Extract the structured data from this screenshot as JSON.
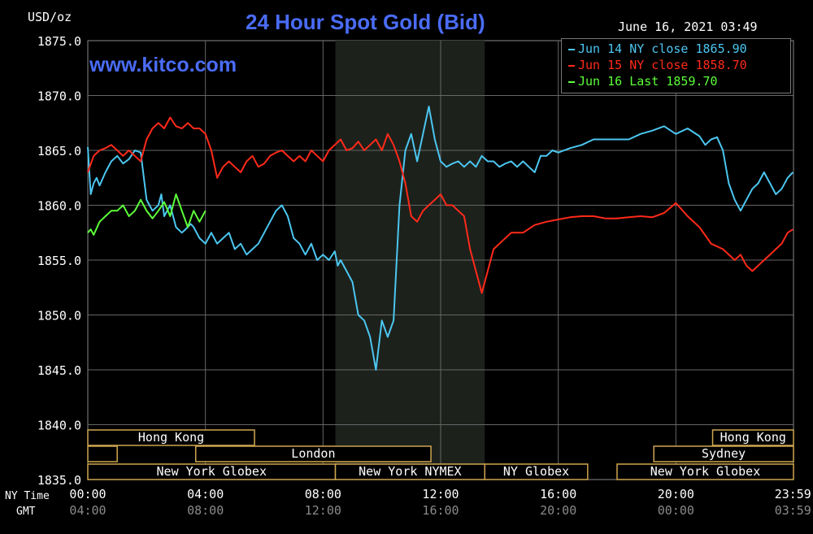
{
  "header": {
    "unit": "USD/oz",
    "title": "24 Hour Spot Gold (Bid)",
    "datetime": "June 16, 2021 03:49",
    "website": "www.kitco.com"
  },
  "colors": {
    "background": "#000000",
    "grid": "#666666",
    "title": "#4a6cf7",
    "jun14": "#4cc6f0",
    "jun15": "#ff2a1a",
    "jun16": "#5dff3a",
    "session_border": "#d0a650",
    "highlight": "#1c211c"
  },
  "legend": [
    {
      "label": "Jun 14 NY close 1865.90",
      "color": "#4cc6f0"
    },
    {
      "label": "Jun 15 NY close 1858.70",
      "color": "#ff2a1a"
    },
    {
      "label": "Jun 16 Last 1859.70",
      "color": "#5dff3a"
    }
  ],
  "row_labels": {
    "ny": "NY Time",
    "gmt": "GMT"
  },
  "sessions": [
    {
      "label": "Hong Kong",
      "start": 0,
      "end": 5.67,
      "row": 0
    },
    {
      "label": "",
      "start": 0,
      "end": 1.0,
      "row": 1
    },
    {
      "label": "London",
      "start": 3.67,
      "end": 11.67,
      "row": 1
    },
    {
      "label": "New York Globex",
      "start": 0,
      "end": 8.42,
      "row": 2
    },
    {
      "label": "New York NYMEX",
      "start": 8.42,
      "end": 13.5,
      "row": 2
    },
    {
      "label": "NY Globex",
      "start": 13.5,
      "end": 17.0,
      "row": 2
    },
    {
      "label": "Hong Kong",
      "start": 21.25,
      "end": 24,
      "row": 0
    },
    {
      "label": "Sydney",
      "start": 19.25,
      "end": 24,
      "row": 1
    },
    {
      "label": "New York Globex",
      "start": 18.0,
      "end": 24,
      "row": 2
    }
  ],
  "chart_data": {
    "type": "line",
    "title": "24 Hour Spot Gold (Bid)",
    "ylabel": "USD/oz",
    "xlim": [
      0,
      24
    ],
    "ylim": [
      1835,
      1875
    ],
    "grid": true,
    "legend_position": "top-right",
    "highlight_band": [
      8.42,
      13.5
    ],
    "y_ticks": [
      "1875.0",
      "1870.0",
      "1865.0",
      "1860.0",
      "1855.0",
      "1850.0",
      "1845.0",
      "1840.0",
      "1835.0"
    ],
    "x_ticks": [
      {
        "x": 0,
        "ny": "00:00",
        "gmt": "04:00"
      },
      {
        "x": 4,
        "ny": "04:00",
        "gmt": "08:00"
      },
      {
        "x": 8,
        "ny": "08:00",
        "gmt": "12:00"
      },
      {
        "x": 12,
        "ny": "12:00",
        "gmt": "16:00"
      },
      {
        "x": 16,
        "ny": "16:00",
        "gmt": "20:00"
      },
      {
        "x": 20,
        "ny": "20:00",
        "gmt": "00:00"
      },
      {
        "x": 23.98,
        "ny": "23:59",
        "gmt": "03:59"
      }
    ],
    "series": [
      {
        "name": "Jun 14 NY close 1865.90",
        "color": "#4cc6f0",
        "x": [
          0,
          0.1,
          0.2,
          0.3,
          0.4,
          0.6,
          0.8,
          1.0,
          1.2,
          1.4,
          1.6,
          1.8,
          2.0,
          2.2,
          2.4,
          2.5,
          2.6,
          2.8,
          3.0,
          3.2,
          3.4,
          3.5,
          3.6,
          3.8,
          4.0,
          4.2,
          4.4,
          4.6,
          4.8,
          5.0,
          5.2,
          5.4,
          5.6,
          5.8,
          6.0,
          6.2,
          6.4,
          6.6,
          6.8,
          7.0,
          7.2,
          7.4,
          7.6,
          7.8,
          8.0,
          8.2,
          8.4,
          8.5,
          8.6,
          8.8,
          9.0,
          9.2,
          9.4,
          9.6,
          9.8,
          10.0,
          10.2,
          10.4,
          10.6,
          10.8,
          11.0,
          11.2,
          11.4,
          11.6,
          11.8,
          12.0,
          12.2,
          12.4,
          12.6,
          12.8,
          13.0,
          13.2,
          13.4,
          13.6,
          13.8,
          14.0,
          14.2,
          14.4,
          14.6,
          14.8,
          15.0,
          15.2,
          15.4,
          15.6,
          15.8,
          16.0,
          16.4,
          16.8,
          17.2,
          17.6,
          18.0,
          18.4,
          18.8,
          19.2,
          19.6,
          20.0,
          20.4,
          20.8,
          21.0,
          21.2,
          21.4,
          21.6,
          21.8,
          22.0,
          22.2,
          22.4,
          22.6,
          22.8,
          23.0,
          23.2,
          23.4,
          23.6,
          23.8,
          23.98
        ],
        "y": [
          1865.3,
          1861,
          1862,
          1862.5,
          1861.8,
          1863,
          1864,
          1864.5,
          1863.8,
          1864.2,
          1865,
          1864.8,
          1860.5,
          1859.5,
          1860,
          1861,
          1859,
          1860,
          1858,
          1857.5,
          1858,
          1858.3,
          1858,
          1857,
          1856.5,
          1857.5,
          1856.5,
          1857,
          1857.5,
          1856,
          1856.5,
          1855.5,
          1856,
          1856.5,
          1857.5,
          1858.5,
          1859.5,
          1860,
          1859,
          1857,
          1856.5,
          1855.5,
          1856.5,
          1855,
          1855.5,
          1855,
          1855.8,
          1854.5,
          1855,
          1854,
          1853,
          1850,
          1849.5,
          1848,
          1845,
          1849.5,
          1848,
          1849.5,
          1860,
          1865,
          1866.5,
          1864,
          1866.5,
          1869,
          1866,
          1864,
          1863.5,
          1863.8,
          1864,
          1863.5,
          1864,
          1863.5,
          1864.5,
          1864,
          1864,
          1863.5,
          1863.8,
          1864,
          1863.5,
          1864,
          1863.5,
          1863,
          1864.5,
          1864.5,
          1865,
          1864.8,
          1865.2,
          1865.5,
          1866,
          1866,
          1866,
          1866,
          1866.5,
          1866.8,
          1867.2,
          1866.5,
          1867,
          1866.3,
          1865.5,
          1866,
          1866.2,
          1865,
          1862,
          1860.5,
          1859.5,
          1860.5,
          1861.5,
          1862,
          1863,
          1862,
          1861,
          1861.5,
          1862.5,
          1863
        ]
      },
      {
        "name": "Jun 15 NY close 1858.70",
        "color": "#ff2a1a",
        "x": [
          0,
          0.2,
          0.4,
          0.6,
          0.8,
          1.0,
          1.2,
          1.4,
          1.6,
          1.8,
          2.0,
          2.2,
          2.4,
          2.6,
          2.8,
          3.0,
          3.2,
          3.4,
          3.6,
          3.8,
          4.0,
          4.2,
          4.4,
          4.6,
          4.8,
          5.0,
          5.2,
          5.4,
          5.6,
          5.8,
          6.0,
          6.2,
          6.4,
          6.6,
          6.8,
          7.0,
          7.2,
          7.4,
          7.6,
          7.8,
          8.0,
          8.2,
          8.4,
          8.6,
          8.8,
          9.0,
          9.2,
          9.4,
          9.6,
          9.8,
          10.0,
          10.2,
          10.4,
          10.6,
          10.8,
          11.0,
          11.2,
          11.4,
          11.6,
          11.8,
          12.0,
          12.2,
          12.4,
          12.6,
          12.8,
          13.0,
          13.2,
          13.4,
          13.6,
          13.8,
          14.0,
          14.4,
          14.8,
          15.2,
          15.6,
          16.0,
          16.4,
          16.8,
          17.2,
          17.6,
          18.0,
          18.4,
          18.8,
          19.2,
          19.6,
          20.0,
          20.4,
          20.8,
          21.2,
          21.6,
          22.0,
          22.2,
          22.4,
          22.6,
          22.8,
          23.0,
          23.2,
          23.4,
          23.6,
          23.8,
          23.98
        ],
        "y": [
          1863,
          1864.5,
          1865,
          1865.2,
          1865.5,
          1865,
          1864.5,
          1865,
          1864.5,
          1864,
          1866,
          1867,
          1867.5,
          1867,
          1868,
          1867.2,
          1867,
          1867.5,
          1867,
          1867,
          1866.5,
          1865,
          1862.5,
          1863.5,
          1864,
          1863.5,
          1863,
          1864,
          1864.5,
          1863.5,
          1863.8,
          1864.5,
          1864.8,
          1865,
          1864.5,
          1864,
          1864.5,
          1864,
          1865,
          1864.5,
          1864,
          1865,
          1865.5,
          1866,
          1865,
          1865.2,
          1865.8,
          1865,
          1865.5,
          1866,
          1865,
          1866.5,
          1865.5,
          1864,
          1862,
          1859,
          1858.5,
          1859.5,
          1860,
          1860.5,
          1861,
          1860,
          1860,
          1859.5,
          1859,
          1856,
          1854,
          1852,
          1854,
          1856,
          1856.5,
          1857.5,
          1857.5,
          1858.2,
          1858.5,
          1858.7,
          1858.9,
          1859,
          1859,
          1858.8,
          1858.8,
          1858.9,
          1859,
          1858.9,
          1859.3,
          1860.2,
          1859,
          1858,
          1856.5,
          1856,
          1855,
          1855.5,
          1854.5,
          1854,
          1854.5,
          1855,
          1855.5,
          1856,
          1856.5,
          1857.5,
          1857.8
        ]
      },
      {
        "name": "Jun 16 Last 1859.70",
        "color": "#5dff3a",
        "x": [
          0,
          0.1,
          0.2,
          0.4,
          0.6,
          0.8,
          1.0,
          1.2,
          1.4,
          1.6,
          1.8,
          2.0,
          2.2,
          2.4,
          2.6,
          2.8,
          3.0,
          3.2,
          3.4,
          3.6,
          3.8,
          4.0
        ],
        "y": [
          1857.5,
          1857.8,
          1857.3,
          1858.5,
          1859,
          1859.5,
          1859.5,
          1860,
          1859,
          1859.5,
          1860.5,
          1859.5,
          1858.8,
          1859.5,
          1860.3,
          1859,
          1861,
          1859.5,
          1858,
          1859.5,
          1858.5,
          1859.5
        ]
      }
    ]
  }
}
